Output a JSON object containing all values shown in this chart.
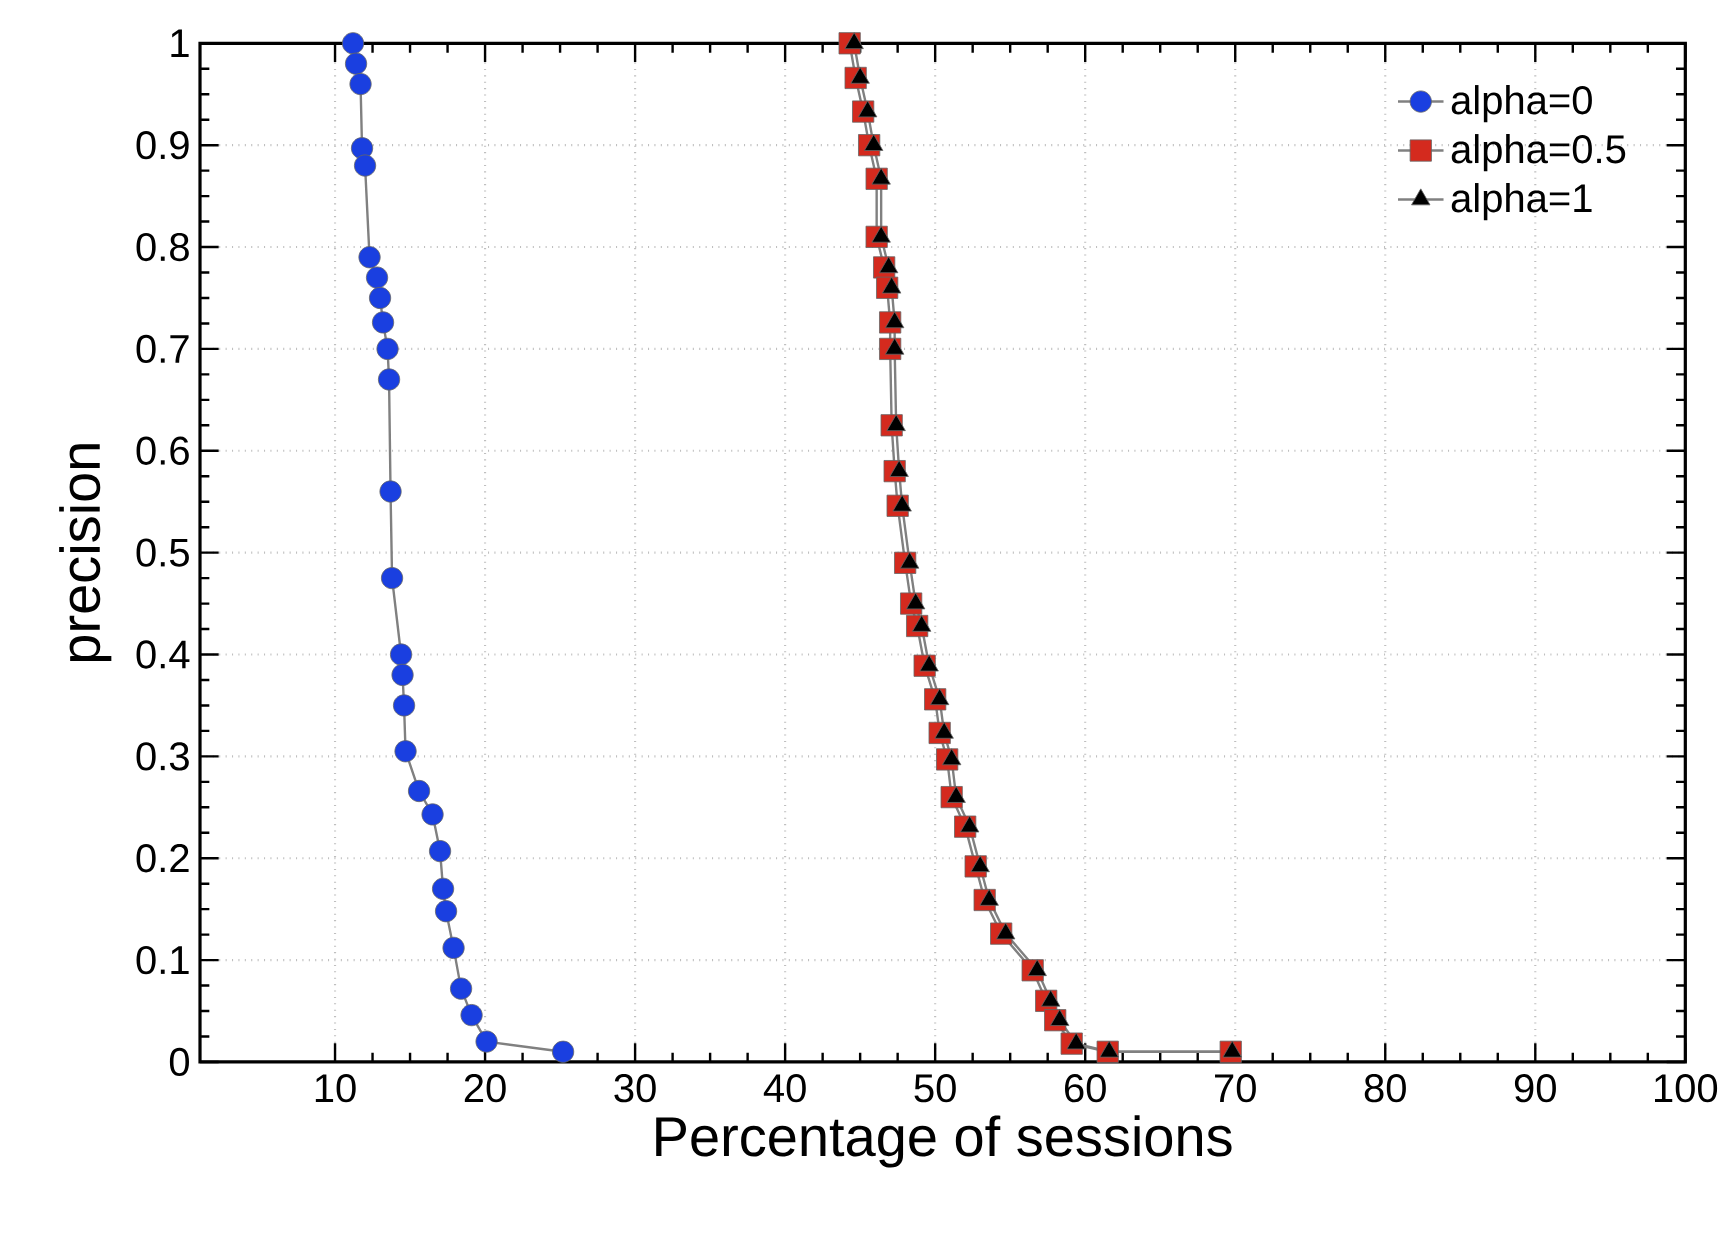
{
  "chart_data": {
    "type": "line",
    "xlabel": "Percentage of sessions",
    "ylabel": "precision",
    "xlim": [
      1,
      100
    ],
    "ylim": [
      0,
      1
    ],
    "xticks": [
      10,
      20,
      30,
      40,
      50,
      60,
      70,
      80,
      90,
      100
    ],
    "yticks": [
      0,
      0.1,
      0.2,
      0.3,
      0.4,
      0.5,
      0.6,
      0.7,
      0.8,
      0.9,
      1
    ],
    "grid": true,
    "legend": "top right",
    "line_style": "solid",
    "series": [
      {
        "name": "alpha=0",
        "color": "#1a3fe0",
        "marker": "circle",
        "x": [
          11.2,
          11.4,
          11.7,
          11.8,
          12.0,
          12.3,
          12.8,
          13.0,
          13.2,
          13.5,
          13.6,
          13.7,
          13.8,
          14.4,
          14.5,
          14.6,
          14.7,
          15.6,
          16.5,
          17.0,
          17.2,
          17.4,
          17.9,
          18.4,
          19.1,
          20.1,
          25.2
        ],
        "values": [
          1.0,
          0.98,
          0.96,
          0.897,
          0.88,
          0.79,
          0.77,
          0.75,
          0.726,
          0.7,
          0.67,
          0.56,
          0.475,
          0.4,
          0.38,
          0.35,
          0.305,
          0.266,
          0.243,
          0.207,
          0.17,
          0.148,
          0.112,
          0.072,
          0.046,
          0.02,
          0.01
        ]
      },
      {
        "name": "alpha=0.5",
        "color": "#d42a1e",
        "marker": "square",
        "x": [
          44.3,
          44.7,
          45.2,
          45.6,
          46.1,
          46.1,
          46.6,
          46.8,
          47.0,
          47.0,
          47.1,
          47.3,
          47.5,
          48.0,
          48.4,
          48.8,
          49.3,
          50.0,
          50.3,
          50.8,
          51.1,
          52.0,
          52.7,
          53.3,
          54.4,
          56.5,
          57.4,
          58.0,
          59.1,
          61.5,
          69.7
        ],
        "values": [
          1.0,
          0.966,
          0.933,
          0.9,
          0.867,
          0.81,
          0.78,
          0.76,
          0.726,
          0.7,
          0.625,
          0.58,
          0.546,
          0.49,
          0.45,
          0.428,
          0.389,
          0.356,
          0.323,
          0.297,
          0.26,
          0.231,
          0.192,
          0.159,
          0.126,
          0.09,
          0.06,
          0.041,
          0.018,
          0.01,
          0.01
        ]
      },
      {
        "name": "alpha=1",
        "color": "#000000",
        "marker": "triangle",
        "x": [
          44.6,
          45.0,
          45.5,
          45.9,
          46.4,
          46.4,
          46.9,
          47.1,
          47.3,
          47.3,
          47.4,
          47.6,
          47.8,
          48.3,
          48.7,
          49.1,
          49.6,
          50.3,
          50.6,
          51.1,
          51.4,
          52.3,
          53.0,
          53.6,
          54.7,
          56.8,
          57.7,
          58.3,
          59.4,
          61.6,
          69.8
        ],
        "values": [
          1.0,
          0.966,
          0.933,
          0.9,
          0.867,
          0.81,
          0.78,
          0.76,
          0.726,
          0.7,
          0.625,
          0.58,
          0.546,
          0.49,
          0.45,
          0.428,
          0.389,
          0.356,
          0.323,
          0.297,
          0.26,
          0.231,
          0.192,
          0.159,
          0.126,
          0.09,
          0.06,
          0.041,
          0.018,
          0.01,
          0.01
        ]
      }
    ]
  }
}
